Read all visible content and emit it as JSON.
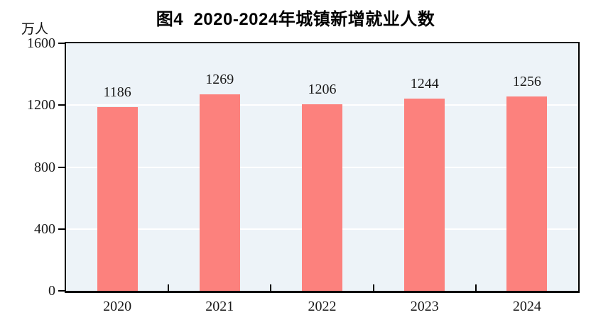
{
  "chart_data": {
    "type": "bar",
    "title": "图4  2020-2024年城镇新增就业人数",
    "unit_label": "万人",
    "categories": [
      "2020",
      "2021",
      "2022",
      "2023",
      "2024"
    ],
    "values": [
      1186,
      1269,
      1206,
      1244,
      1256
    ],
    "ylim": [
      0,
      1600
    ],
    "yticks": [
      0,
      400,
      800,
      1200,
      1600
    ],
    "grid": true,
    "legend": "none",
    "colors": {
      "bar": "#FC817D",
      "plot_bg": "#EDF3F8",
      "gridline": "#FFFFFF",
      "axis": "#000000",
      "text": "#1A1A1A"
    }
  }
}
